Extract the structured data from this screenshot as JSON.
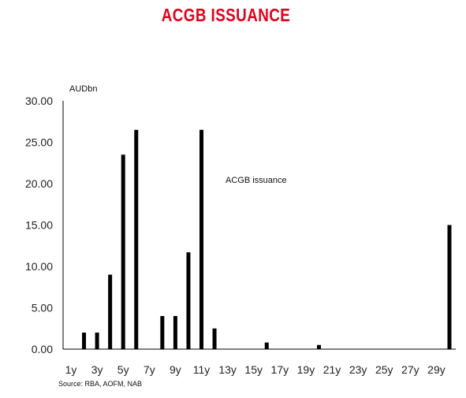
{
  "colors": {
    "title": "#e3001b",
    "bar": "#000000",
    "axis": "#000000"
  },
  "chart_data": {
    "type": "bar",
    "title": "ACGB ISSUANCE",
    "unit_label": "AUDbn",
    "series_label": "ACGB issuance",
    "source": "Source: RBA, AOFM, NAB",
    "grid": false,
    "ylim": [
      0,
      30
    ],
    "yticks": [
      "30.00",
      "25.00",
      "20.00",
      "15.00",
      "10.00",
      "5.00",
      "0.00"
    ],
    "ytick_values": [
      30,
      25,
      20,
      15,
      10,
      5,
      0
    ],
    "xtick_labels": [
      "1y",
      "3y",
      "5y",
      "7y",
      "9y",
      "11y",
      "13y",
      "15y",
      "17y",
      "19y",
      "21y",
      "23y",
      "25y",
      "27y",
      "29y"
    ],
    "categories": [
      "1y",
      "1.5y",
      "2y",
      "2.5y",
      "3y",
      "3.5y",
      "4y",
      "4.5y",
      "5y",
      "5.5y",
      "6y",
      "6.5y",
      "7y",
      "7.5y",
      "8y",
      "8.5y",
      "9y",
      "9.5y",
      "10y",
      "10.5y",
      "11y",
      "11.5y",
      "12y",
      "12.5y",
      "13y",
      "13.5y",
      "14y",
      "14.5y",
      "15y",
      "15.5y",
      "16y",
      "16.5y",
      "17y",
      "17.5y",
      "18y",
      "18.5y",
      "19y",
      "19.5y",
      "20y",
      "20.5y",
      "21y",
      "21.5y",
      "22y",
      "22.5y",
      "23y",
      "23.5y",
      "24y",
      "24.5y",
      "25y",
      "25.5y",
      "26y",
      "26.5y",
      "27y",
      "27.5y",
      "28y",
      "28.5y",
      "29y",
      "29.5y",
      "30y"
    ],
    "values": [
      0,
      0,
      2,
      0,
      2,
      0,
      9,
      0,
      23.5,
      0,
      26.5,
      0,
      0,
      0,
      4,
      0,
      4,
      0,
      11.7,
      0,
      26.5,
      0,
      2.5,
      0,
      0,
      0,
      0,
      0,
      0,
      0,
      0.8,
      0,
      0,
      0,
      0,
      0,
      0,
      0,
      0.5,
      0,
      0,
      0,
      0,
      0,
      0,
      0,
      0,
      0,
      0,
      0,
      0,
      0,
      0,
      0,
      0,
      0,
      0,
      0,
      15
    ]
  }
}
